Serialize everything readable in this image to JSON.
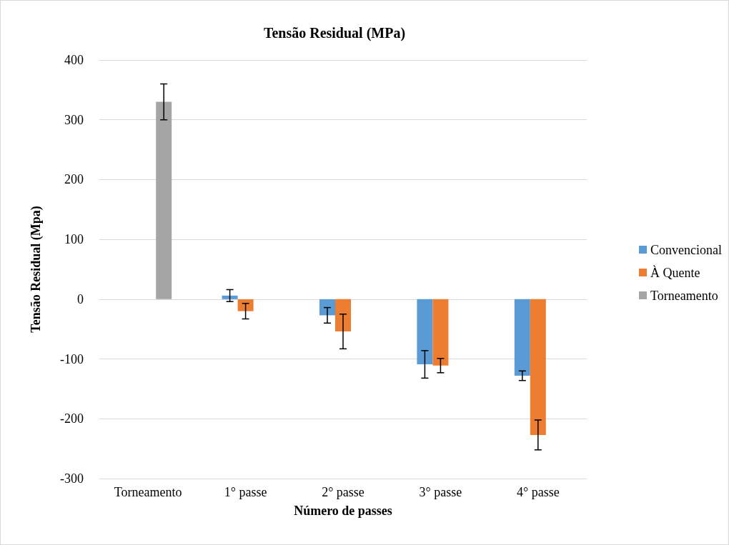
{
  "chart_data": {
    "type": "bar",
    "title": "Tensão Residual (MPa)",
    "xlabel": "Número de passes",
    "ylabel": "Tensão Residual (Mpa)",
    "categories": [
      "Torneamento",
      "1° passe",
      "2° passe",
      "3° passe",
      "4° passe"
    ],
    "series": [
      {
        "name": "Convencional",
        "color": "#5b9bd5",
        "values": [
          null,
          6,
          -27,
          -109,
          -128
        ],
        "errors": [
          null,
          10,
          13,
          23,
          8
        ]
      },
      {
        "name": "À Quente",
        "color": "#ed7d31",
        "values": [
          null,
          -20,
          -54,
          -111,
          -227
        ],
        "errors": [
          null,
          13,
          29,
          12,
          25
        ]
      },
      {
        "name": "Torneamento",
        "color": "#a5a5a5",
        "values": [
          330,
          null,
          null,
          null,
          null
        ],
        "errors": [
          30,
          null,
          null,
          null,
          null
        ]
      }
    ],
    "ylim": [
      -300,
      400
    ],
    "yticks": [
      -300,
      -200,
      -100,
      0,
      100,
      200,
      300,
      400
    ],
    "grid": "y",
    "legend": "right"
  }
}
